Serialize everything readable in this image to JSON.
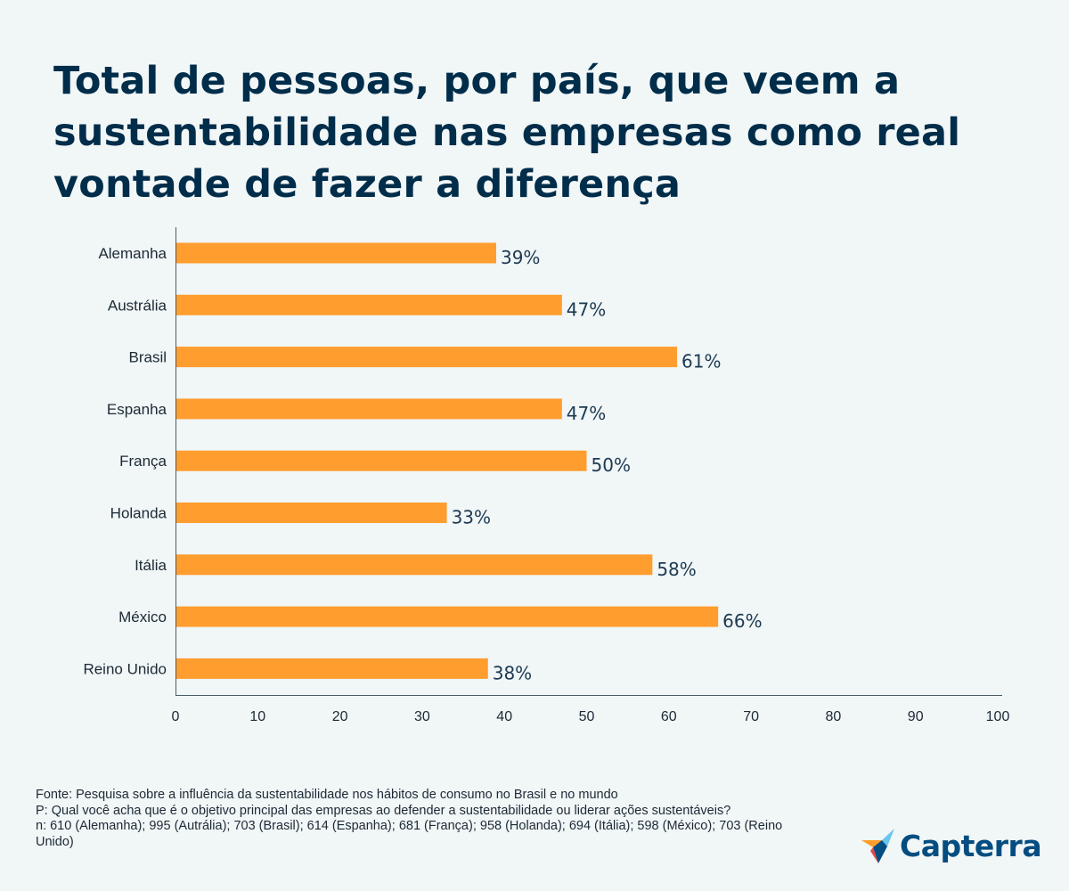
{
  "chart_data": {
    "type": "bar",
    "orientation": "horizontal",
    "title": "Total de pessoas, por país, que veem a sustentabilidade nas empresas como real vontade de fazer a diferença",
    "categories": [
      "Alemanha",
      "Austrália",
      "Brasil",
      "Espanha",
      "França",
      "Holanda",
      "Itália",
      "México",
      "Reino Unido"
    ],
    "values": [
      39,
      47,
      61,
      47,
      50,
      33,
      58,
      66,
      38
    ],
    "value_labels": [
      "39%",
      "47%",
      "61%",
      "47%",
      "50%",
      "33%",
      "58%",
      "66%",
      "38%"
    ],
    "xlim": [
      0,
      100
    ],
    "xticks": [
      "0",
      "10",
      "20",
      "30",
      "40",
      "50",
      "60",
      "70",
      "80",
      "90",
      "100"
    ],
    "xlabel": "",
    "ylabel": "",
    "grid": false,
    "bar_color": "#ff9d2e"
  },
  "footer": {
    "source": "Fonte: Pesquisa sobre a influência da sustentabilidade nos hábitos de consumo no Brasil e no mundo",
    "question": "P: Qual você acha que é o objetivo principal das empresas ao defender a sustentabilidade ou liderar ações sustentáveis?",
    "sample": "n: 610 (Alemanha); 995 (Autrália); 703 (Brasil); 614 (Espanha); 681 (França); 958 (Holanda); 694 (Itália); 598 (México); 703 (Reino Unido)"
  },
  "brand": {
    "name": "Capterra",
    "icon": "capterra-logo-icon"
  }
}
